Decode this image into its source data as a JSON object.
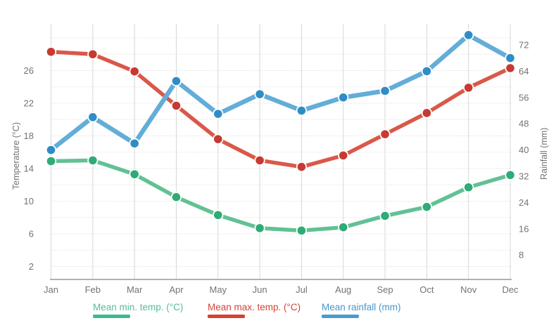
{
  "chart_data": {
    "type": "line",
    "categories": [
      "Jan",
      "Feb",
      "Mar",
      "Apr",
      "May",
      "Jun",
      "Jul",
      "Aug",
      "Sep",
      "Oct",
      "Nov",
      "Dec"
    ],
    "series": [
      {
        "name": "Mean min. temp. (°C)",
        "axis": "temperature",
        "values": [
          14.9,
          15.0,
          13.3,
          10.5,
          8.3,
          6.7,
          6.4,
          6.8,
          8.2,
          9.3,
          11.7,
          13.2
        ],
        "color_line": "#62c194",
        "color_point": "#2eab76",
        "color_text": "#55bd96",
        "color_bar": "#3cba8b",
        "line_width": 5.5
      },
      {
        "name": "Mean max. temp. (°C)",
        "axis": "temperature",
        "values": [
          28.3,
          28.0,
          25.9,
          21.7,
          17.6,
          15.0,
          14.2,
          15.6,
          18.2,
          20.8,
          23.9,
          26.3
        ],
        "color_line": "#d9584a",
        "color_point": "#c73a31",
        "color_text": "#d24437",
        "color_bar": "#d8402f",
        "line_width": 5.5
      },
      {
        "name": "Mean rainfall (mm)",
        "axis": "rainfall",
        "values": [
          40,
          50,
          42,
          61,
          51,
          57,
          52,
          56,
          58,
          64,
          75,
          68
        ],
        "color_line": "#63add8",
        "color_point": "#2f8dc6",
        "color_text": "#4696cd",
        "color_bar": "#4a9bd3",
        "line_width": 6.5
      }
    ],
    "y_axis_left": {
      "title": "Temperature (°C)",
      "ticks": [
        2,
        6,
        10,
        14,
        18,
        22,
        26
      ]
    },
    "y_axis_right": {
      "title": "Rainfall (mm)",
      "ticks": [
        8,
        16,
        24,
        32,
        40,
        48,
        56,
        64,
        72
      ]
    },
    "legend_position": "bottom",
    "grid": {
      "vertical": "solid",
      "horizontal": "dotted"
    },
    "colors": {
      "tick_text": "#737373",
      "grid_vertical": "#d7d7d7",
      "grid_dotted": "#d6d6d6",
      "axis_line": "#b1b1b1",
      "background": "#ffffff"
    }
  }
}
